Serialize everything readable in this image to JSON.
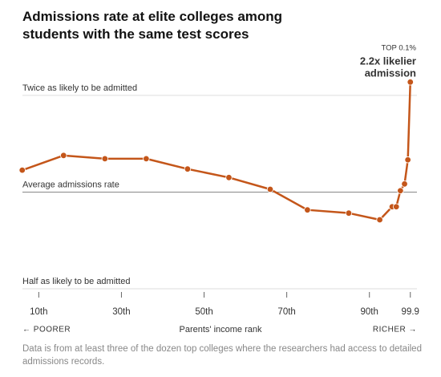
{
  "chart_data": {
    "type": "line",
    "title": "Admissions rate at elite colleges among students with the same test scores",
    "x_label": "Parents' income rank",
    "x_left_label": "← POORER",
    "x_right_label": "RICHER →",
    "note": "Data is from at least three of the dozen top colleges where the researchers had access to detailed admissions records.",
    "annotation": {
      "label": "TOP 0.1%",
      "text": [
        "2.2x likelier",
        "admission"
      ]
    },
    "x": [
      6,
      16,
      26,
      36,
      46,
      56,
      66,
      75,
      85,
      92.5,
      95.5,
      96.5,
      97.5,
      98.5,
      99.3,
      99.9
    ],
    "series": [
      {
        "color": "#c4561a",
        "values": [
          1.17,
          1.3,
          1.27,
          1.27,
          1.18,
          1.11,
          1.02,
          0.88,
          0.86,
          0.82,
          0.9,
          0.9,
          1.01,
          1.06,
          1.26,
          2.2
        ]
      }
    ],
    "xlim": [
      4.5,
      101.5
    ],
    "xticks": [
      {
        "value": 10,
        "label": "10th"
      },
      {
        "value": 30,
        "label": "30th"
      },
      {
        "value": 50,
        "label": "50th"
      },
      {
        "value": 70,
        "label": "70th"
      },
      {
        "value": 90,
        "label": "90th"
      },
      99.9
    ],
    "ylim": [
      0.5,
      2.3
    ],
    "ylog": true,
    "yticks": [
      {
        "value": 2,
        "label": "Twice as likely to be admitted"
      },
      {
        "value": 1,
        "label": "Average admissions rate"
      },
      {
        "value": 0.5,
        "label": "Half as likely to be admitted"
      }
    ],
    "grid": true
  }
}
